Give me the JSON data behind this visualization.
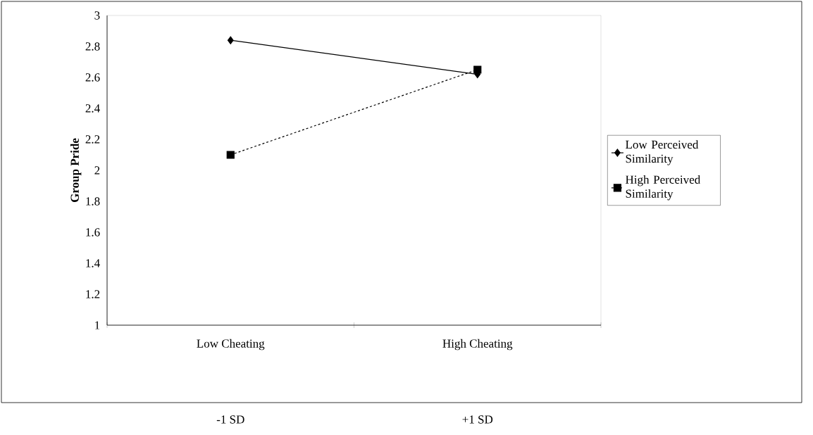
{
  "chart_data": {
    "type": "line",
    "ylabel": "Group Pride",
    "categories": [
      "Low Cheating",
      "High Cheating"
    ],
    "series": [
      {
        "name": "Low Perceived Similarity",
        "color": "#000000",
        "values": [
          2.84,
          2.62
        ],
        "marker": "diamond",
        "line_style": "solid"
      },
      {
        "name": "High Perceived Similarity",
        "color": "#000000",
        "values": [
          2.1,
          2.65
        ],
        "marker": "square",
        "line_style": "dashed"
      }
    ],
    "ylim": [
      1,
      3
    ],
    "yticks": [
      1,
      1.2,
      1.4,
      1.6,
      1.8,
      2,
      2.2,
      2.4,
      2.6,
      2.8,
      3
    ],
    "grid": false,
    "legend": "right",
    "annotations": [
      "-1 SD",
      "+1 SD"
    ]
  }
}
